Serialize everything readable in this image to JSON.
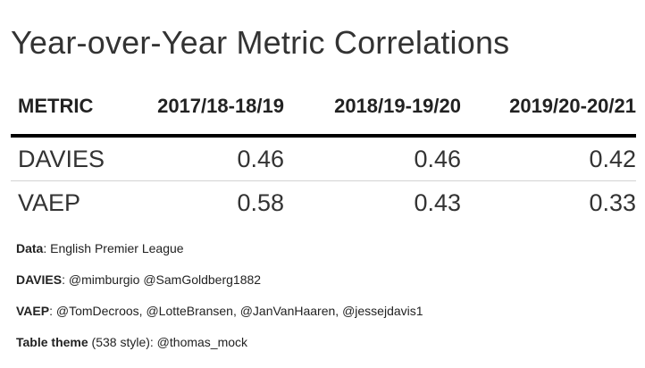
{
  "table": {
    "title": "Year-over-Year Metric Correlations",
    "columns": [
      "METRIC",
      "2017/18-18/19",
      "2018/19-19/20",
      "2019/20-20/21"
    ],
    "rows": [
      {
        "metric": "DAVIES",
        "values": [
          "0.46",
          "0.46",
          "0.42"
        ]
      },
      {
        "metric": "VAEP",
        "values": [
          "0.58",
          "0.43",
          "0.33"
        ]
      }
    ]
  },
  "chart_data": {
    "type": "table",
    "title": "Year-over-Year Metric Correlations",
    "columns": [
      "METRIC",
      "2017/18-18/19",
      "2018/19-19/20",
      "2019/20-20/21"
    ],
    "rows": [
      [
        "DAVIES",
        0.46,
        0.46,
        0.42
      ],
      [
        "VAEP",
        0.58,
        0.43,
        0.33
      ]
    ]
  },
  "notes": [
    {
      "label": "Data",
      "text": ": English Premier League"
    },
    {
      "label": "DAVIES",
      "text": ": @mimburgio @SamGoldberg1882"
    },
    {
      "label": "VAEP",
      "text": ": @TomDecroos, @LotteBransen, @JanVanHaaren, @jessejdavis1"
    },
    {
      "label": "Table theme",
      "text": " (538 style): @thomas_mock"
    }
  ]
}
